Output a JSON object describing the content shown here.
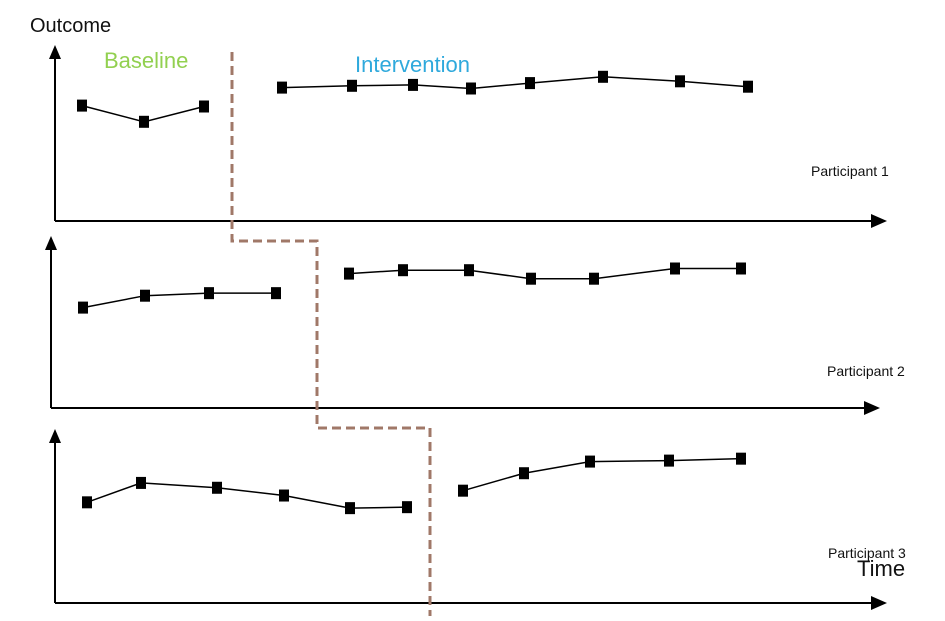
{
  "chart_data": {
    "type": "line",
    "ylabel": "Outcome",
    "xlabel": "Time",
    "phase_labels": {
      "baseline": "Baseline",
      "intervention": "Intervention"
    },
    "panels": [
      {
        "label": "Participant 1",
        "baseline": [
          [
            1,
            0.66
          ],
          [
            2,
            0.48
          ],
          [
            3,
            0.65
          ]
        ],
        "intervention": [
          [
            4,
            0.86
          ],
          [
            5,
            0.88
          ],
          [
            6,
            0.89
          ],
          [
            7,
            0.85
          ],
          [
            8,
            0.91
          ],
          [
            9,
            0.98
          ],
          [
            10,
            0.93
          ],
          [
            11,
            0.87
          ]
        ]
      },
      {
        "label": "Participant 2",
        "baseline": [
          [
            1,
            0.44
          ],
          [
            2,
            0.58
          ],
          [
            3,
            0.61
          ],
          [
            4,
            0.61
          ]
        ],
        "intervention": [
          [
            5,
            0.84
          ],
          [
            6,
            0.88
          ],
          [
            7,
            0.88
          ],
          [
            8,
            0.78
          ],
          [
            9,
            0.78
          ],
          [
            10,
            0.9
          ],
          [
            11,
            0.9
          ]
        ]
      },
      {
        "label": "Participant 3",
        "baseline": [
          [
            1,
            0.44
          ],
          [
            2,
            0.64
          ],
          [
            3,
            0.59
          ],
          [
            4,
            0.51
          ],
          [
            5,
            0.38
          ],
          [
            6,
            0.39
          ]
        ],
        "intervention": [
          [
            7,
            0.56
          ],
          [
            8,
            0.74
          ],
          [
            9,
            0.86
          ],
          [
            10,
            0.87
          ],
          [
            11,
            0.89
          ]
        ]
      }
    ],
    "colors": {
      "baseline_text": "#92d050",
      "intervention_text": "#2fa9dc",
      "phase_line": "#a07868",
      "data": "#000000"
    }
  }
}
